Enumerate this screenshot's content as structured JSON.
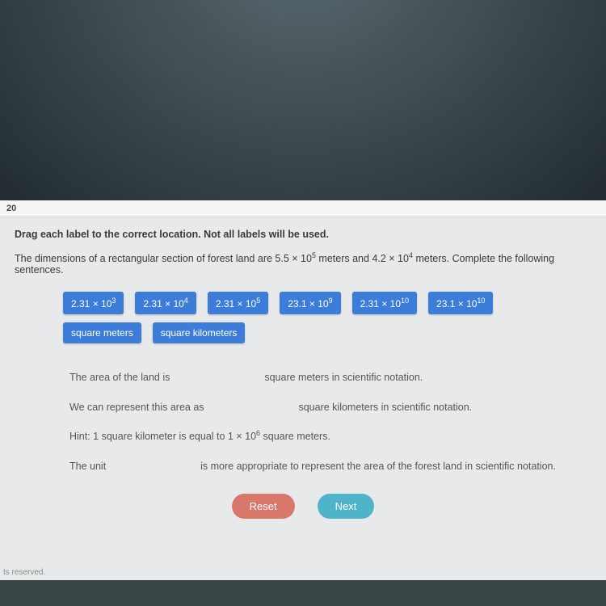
{
  "header": {
    "page_num": "20"
  },
  "instruction": "Drag each label to the correct location. Not all labels will be used.",
  "problem": {
    "prefix": "The dimensions of a rectangular section of forest land are ",
    "dim1_base": "5.5 × 10",
    "dim1_exp": "5",
    "mid1": " meters and ",
    "dim2_base": "4.2 × 10",
    "dim2_exp": "4",
    "suffix": " meters. Complete the following sentences."
  },
  "labels": {
    "row1": [
      {
        "base": "2.31 × 10",
        "exp": "3"
      },
      {
        "base": "2.31 × 10",
        "exp": "4"
      },
      {
        "base": "2.31 × 10",
        "exp": "5"
      },
      {
        "base": "23.1 × 10",
        "exp": "9"
      },
      {
        "base": "2.31 × 10",
        "exp": "10"
      },
      {
        "base": "23.1 × 10",
        "exp": "10"
      }
    ],
    "row2": [
      {
        "text": "square meters"
      },
      {
        "text": "square kilometers"
      }
    ]
  },
  "sentences": {
    "s1a": "The area of the land is ",
    "s1b": " square meters in scientific notation.",
    "s2a": "We can represent this area as ",
    "s2b": " square kilometers in scientific notation.",
    "hint_a": "Hint: 1 square kilometer is equal to 1 × 10",
    "hint_exp": "6",
    "hint_b": " square meters.",
    "s3a": "The unit ",
    "s3b": " is more appropriate to represent the area of the forest land in scientific notation."
  },
  "buttons": {
    "reset": "Reset",
    "next": "Next"
  },
  "footer": "ts reserved.",
  "colors": {
    "chip_bg": "#3b7dd8",
    "reset_bg": "#d9776a",
    "next_bg": "#4fb3c9",
    "page_bg": "#e8e9ea"
  }
}
